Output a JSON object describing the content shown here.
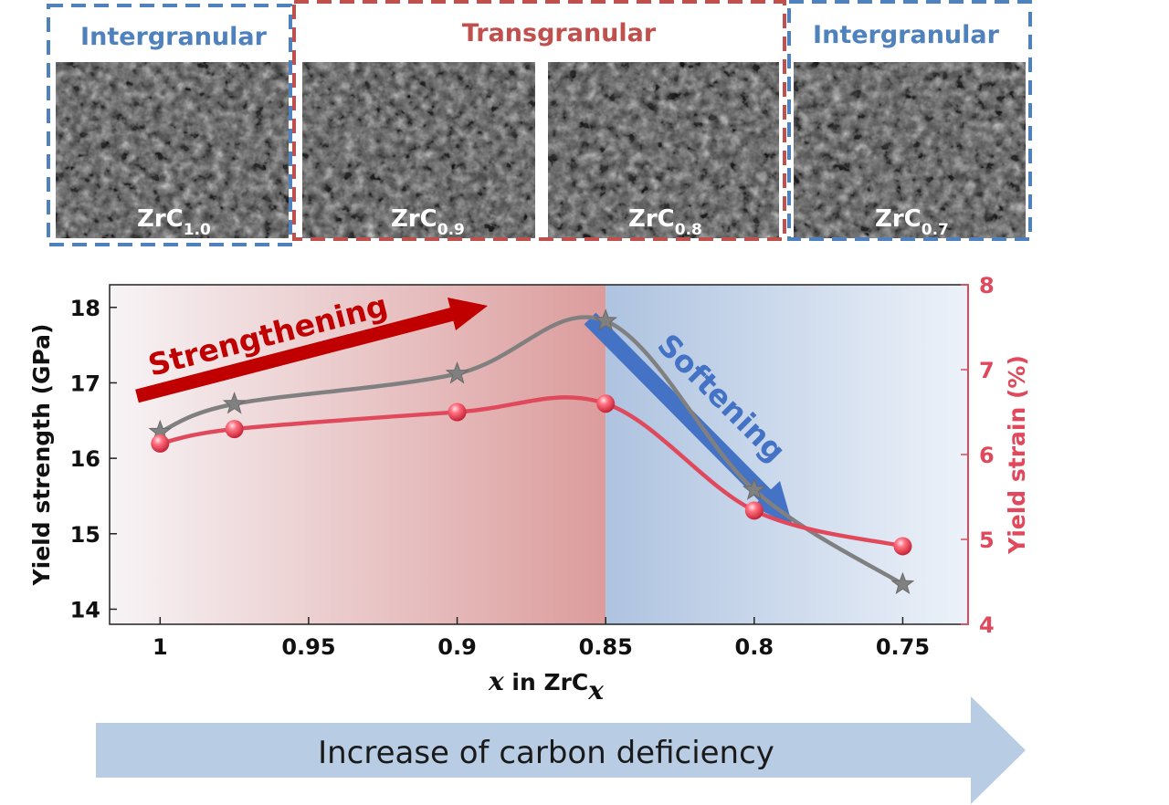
{
  "colors": {
    "intergranular": "#4f81bd",
    "transgranular": "#c0504d",
    "strength_line": "#808080",
    "strain_line": "#e0485c",
    "strengthening_arrow": "#c00000",
    "softening_arrow": "#4472c4",
    "banner": "#b8cce4",
    "sem_background": "#4a4a4a"
  },
  "micrographs": {
    "groups": [
      {
        "label": "Intergranular",
        "color": "intergranular"
      },
      {
        "label": "Transgranular",
        "color": "transgranular"
      },
      {
        "label": "Intergranular",
        "color": "intergranular"
      }
    ],
    "panels": [
      {
        "main": "ZrC",
        "sub": "1.0"
      },
      {
        "main": "ZrC",
        "sub": "0.9"
      },
      {
        "main": "ZrC",
        "sub": "0.8"
      },
      {
        "main": "ZrC",
        "sub": "0.7"
      }
    ]
  },
  "chart_data": {
    "type": "line",
    "xlabel": {
      "var": "x",
      "text": " in ZrC",
      "sub": "x"
    },
    "ylabel": "Yield strength (GPa)",
    "y2label": "Yield strain (%)",
    "xlim": [
      1.017,
      0.728
    ],
    "ylim": [
      13.8,
      18.3
    ],
    "y2lim": [
      4,
      8
    ],
    "x_ticks": [
      1,
      0.95,
      0.9,
      0.85,
      0.8,
      0.75
    ],
    "x_tick_labels": [
      "1",
      "0.95",
      "0.9",
      "0.85",
      "0.8",
      "0.75"
    ],
    "y_ticks": [
      14,
      15,
      16,
      17,
      18
    ],
    "y2_ticks": [
      4,
      5,
      6,
      7,
      8
    ],
    "region_boundary_x": 0.85,
    "series": [
      {
        "axis": "left",
        "marker": "star",
        "color": "strength_line",
        "x": [
          1.0,
          0.975,
          0.9,
          0.85,
          0.8,
          0.75
        ],
        "y": [
          16.35,
          16.72,
          17.12,
          17.82,
          15.58,
          14.33
        ]
      },
      {
        "axis": "right",
        "marker": "sphere",
        "color": "strain_line",
        "x": [
          1.0,
          0.975,
          0.9,
          0.85,
          0.8,
          0.75
        ],
        "y": [
          6.13,
          6.3,
          6.5,
          6.6,
          5.34,
          4.92
        ]
      }
    ],
    "annotations": [
      {
        "text": "Strengthening",
        "color": "strengthening_arrow"
      },
      {
        "text": "Softening",
        "color": "softening_arrow"
      }
    ]
  },
  "banner": {
    "text": "Increase of carbon deficiency"
  }
}
